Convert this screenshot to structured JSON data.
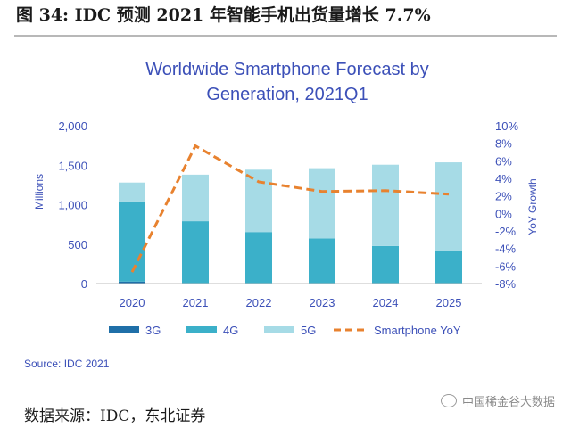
{
  "figure_title": "图  34: IDC 预测 2021 年智能手机出货量增长 7.7%",
  "source_note": "Source: IDC 2021",
  "bottom_source": "数据来源：IDC，东北证券",
  "watermark": "中国稀金谷大数据",
  "colors": {
    "g3": "#1f6fa8",
    "g4": "#3bb0c9",
    "g5": "#a6dbe6",
    "yoy": "#e8822f",
    "axis_text": "#3c50b8",
    "title_text": "#3c50b8"
  },
  "chart_data": {
    "type": "bar",
    "stacked": true,
    "title": "Worldwide Smartphone Forecast by Generation, 2021Q1",
    "title_lines": [
      "Worldwide Smartphone Forecast by",
      "Generation, 2021Q1"
    ],
    "categories": [
      "2020",
      "2021",
      "2022",
      "2023",
      "2024",
      "2025"
    ],
    "ylabel": "Millions",
    "ylim": [
      0,
      2000
    ],
    "yticks": [
      "2,000",
      "1,500",
      "1,000",
      "500",
      "0"
    ],
    "y2label": "YoY Growth",
    "y2lim": [
      -8,
      10
    ],
    "y2ticks": [
      "10%",
      "8%",
      "6%",
      "4%",
      "2%",
      "0%",
      "-2%",
      "-4%",
      "-6%",
      "-8%"
    ],
    "series": [
      {
        "name": "3G",
        "values": [
          25,
          5,
          3,
          2,
          1,
          1
        ]
      },
      {
        "name": "4G",
        "values": [
          1015,
          785,
          650,
          570,
          475,
          410
        ]
      },
      {
        "name": "5G",
        "values": [
          240,
          590,
          790,
          890,
          1030,
          1125
        ]
      }
    ],
    "line_series": {
      "name": "Smartphone YoY",
      "values": [
        -6.7,
        7.7,
        3.6,
        2.5,
        2.6,
        2.2
      ],
      "axis": "right",
      "style": "dashed"
    },
    "legend_position": "bottom",
    "grid": false
  }
}
